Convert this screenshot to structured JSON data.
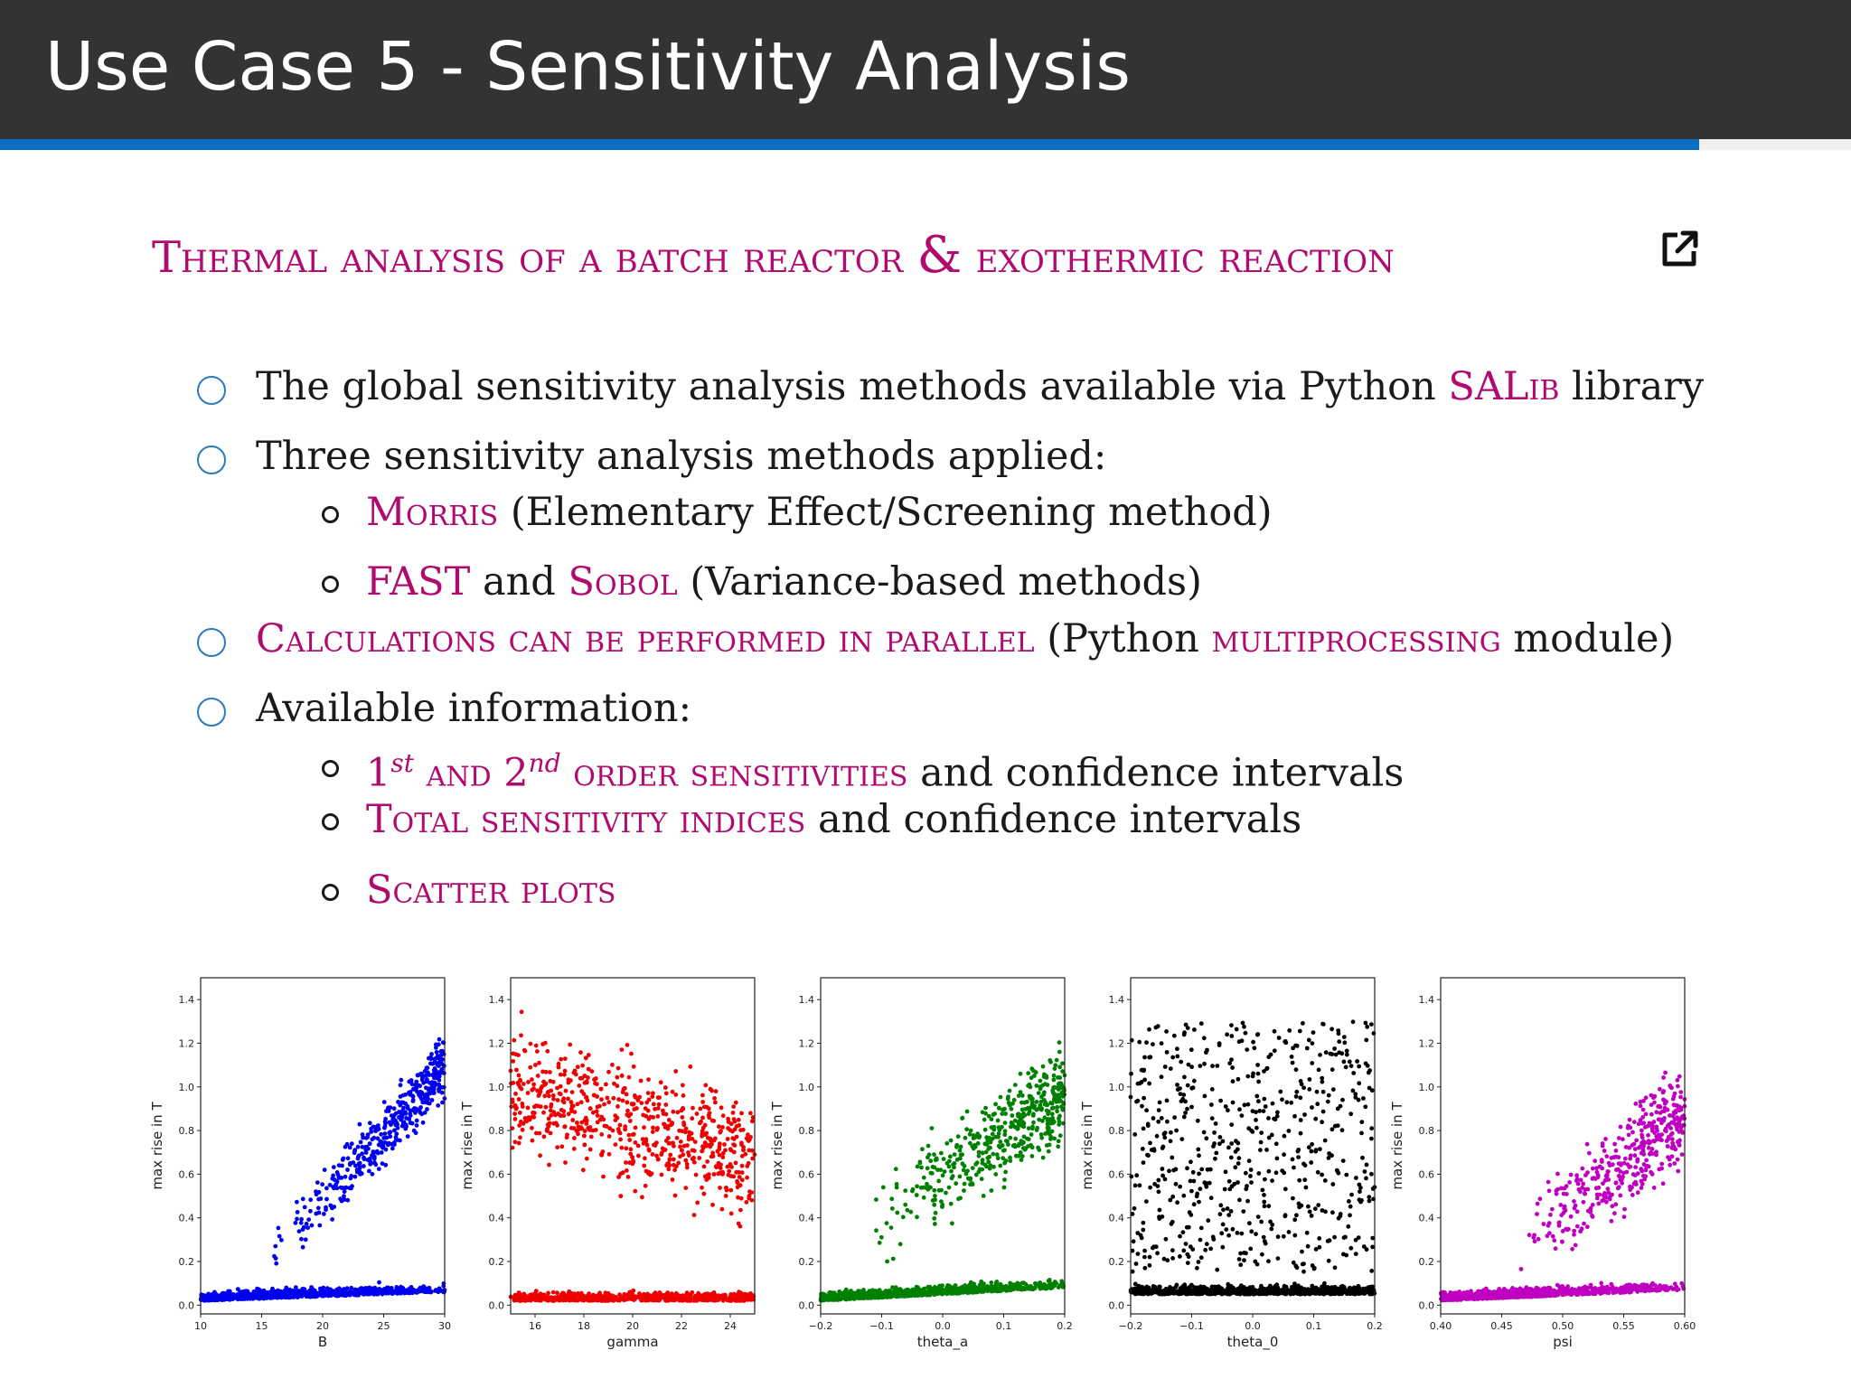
{
  "header": {
    "title": "Use Case 5 - Sensitivity Analysis"
  },
  "subtitle": {
    "part1": "Thermal analysis of a batch reactor",
    "amp": "&",
    "part2": "exothermic reaction",
    "link_icon": "external-link-icon"
  },
  "bullets": {
    "b1": {
      "pre": "The global sensitivity analysis methods available via Python ",
      "lib": "SALib",
      "post": " library"
    },
    "b2": {
      "text": "Three sensitivity analysis methods applied:"
    },
    "b2a": {
      "method": "Morris",
      "desc": " (Elementary Effect/Screening method)"
    },
    "b2b": {
      "m1": "FAST",
      "and": " and ",
      "m2": "Sobol",
      "desc": " (Variance-based methods)"
    },
    "b3": {
      "sc": "Calculations can be performed in parallel",
      "pre": " (Python ",
      "module": "multiprocessing",
      "post": " module)"
    },
    "b4": {
      "text": "Available information:"
    },
    "b4a": {
      "n1": "1",
      "s1": "st",
      "and": " and ",
      "n2": "2",
      "s2": "nd",
      "sc": " order sensitivities",
      "post": " and confidence intervals"
    },
    "b4b": {
      "sc": "Total sensitivity indices",
      "post": " and confidence intervals"
    },
    "b4c": {
      "sc": "Scatter plots"
    }
  },
  "chart_data": [
    {
      "type": "scatter",
      "xlabel": "B",
      "ylabel": "max rise in T",
      "xlim": [
        10,
        30
      ],
      "ylim": [
        -0.04,
        1.5
      ],
      "xticks": [
        "10",
        "15",
        "20",
        "25",
        "30"
      ],
      "xtick_values": [
        10,
        15,
        20,
        25,
        30
      ],
      "yticks": [
        "0.0",
        "0.2",
        "0.4",
        "0.6",
        "0.8",
        "1.0",
        "1.2",
        "1.4"
      ],
      "color": "#0000ee",
      "pattern": "rising-threshold",
      "n_points": 1400
    },
    {
      "type": "scatter",
      "xlabel": "gamma",
      "ylabel": "max rise in T",
      "xlim": [
        15,
        25
      ],
      "ylim": [
        -0.04,
        1.5
      ],
      "xticks": [
        "16",
        "18",
        "20",
        "22",
        "24"
      ],
      "xtick_values": [
        16,
        18,
        20,
        22,
        24
      ],
      "yticks": [
        "0.0",
        "0.2",
        "0.4",
        "0.6",
        "0.8",
        "1.0",
        "1.2",
        "1.4"
      ],
      "color": "#ee0000",
      "pattern": "falling",
      "n_points": 1400
    },
    {
      "type": "scatter",
      "xlabel": "theta_a",
      "ylabel": "max rise in T",
      "xlim": [
        -0.2,
        0.2
      ],
      "ylim": [
        -0.04,
        1.5
      ],
      "xticks": [
        "−0.2",
        "−0.1",
        "0.0",
        "0.1",
        "0.2"
      ],
      "xtick_values": [
        -0.2,
        -0.1,
        0,
        0.1,
        0.2
      ],
      "yticks": [
        "0.0",
        "0.2",
        "0.4",
        "0.6",
        "0.8",
        "1.0",
        "1.2",
        "1.4"
      ],
      "color": "#008000",
      "pattern": "rising-wedge",
      "n_points": 1400
    },
    {
      "type": "scatter",
      "xlabel": "theta_0",
      "ylabel": "max rise in T",
      "xlim": [
        -0.2,
        0.2
      ],
      "ylim": [
        -0.04,
        1.5
      ],
      "xticks": [
        "−0.2",
        "−0.1",
        "0.0",
        "0.1",
        "0.2"
      ],
      "xtick_values": [
        -0.2,
        -0.1,
        0,
        0.1,
        0.2
      ],
      "yticks": [
        "0.0",
        "0.2",
        "0.4",
        "0.6",
        "0.8",
        "1.0",
        "1.2",
        "1.4"
      ],
      "color": "#000000",
      "pattern": "uniform",
      "n_points": 1400
    },
    {
      "type": "scatter",
      "xlabel": "psi",
      "ylabel": "max rise in T",
      "xlim": [
        0.4,
        0.6
      ],
      "ylim": [
        -0.04,
        1.5
      ],
      "xticks": [
        "0.40",
        "0.45",
        "0.50",
        "0.55",
        "0.60"
      ],
      "xtick_values": [
        0.4,
        0.45,
        0.5,
        0.55,
        0.6
      ],
      "yticks": [
        "0.0",
        "0.2",
        "0.4",
        "0.6",
        "0.8",
        "1.0",
        "1.2",
        "1.4"
      ],
      "color": "#c000c0",
      "pattern": "rising-wedge-late",
      "n_points": 1400
    }
  ]
}
